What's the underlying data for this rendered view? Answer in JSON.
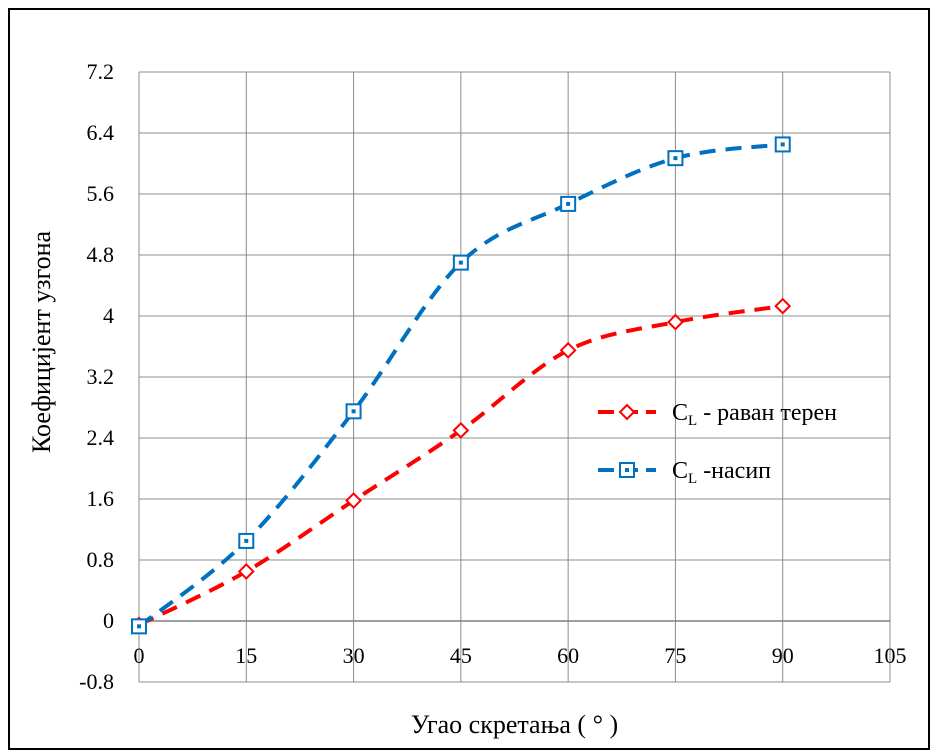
{
  "chart_data": {
    "type": "line",
    "xlabel": "Угао скретања ( ° )",
    "ylabel": "Коефицијент узгона",
    "xlim": [
      0,
      105
    ],
    "ylim": [
      -0.8,
      7.2
    ],
    "xticks": [
      0,
      15,
      30,
      45,
      60,
      75,
      90,
      105
    ],
    "yticks": [
      -0.8,
      0,
      0.8,
      1.6,
      2.4,
      3.2,
      4,
      4.8,
      5.6,
      6.4,
      7.2
    ],
    "ytick_labels": [
      "-0.8",
      "0",
      "0.8",
      "1.6",
      "2.4",
      "3.2",
      "4",
      "4.8",
      "5.6",
      "6.4",
      "7.2"
    ],
    "grid": true,
    "legend_position": "right",
    "series": [
      {
        "name_main": "C",
        "name_sub": "L",
        "name_rest": " - раван терен",
        "color": "#ff0000",
        "marker": "diamond",
        "line_style": "dashed",
        "x": [
          0,
          15,
          30,
          45,
          60,
          75,
          90
        ],
        "y": [
          -0.05,
          0.65,
          1.58,
          2.5,
          3.55,
          3.92,
          4.13
        ]
      },
      {
        "name_main": "C",
        "name_sub": "L",
        "name_rest": " -насип",
        "color": "#0070c0",
        "marker": "square",
        "line_style": "dashed",
        "x": [
          0,
          15,
          30,
          45,
          60,
          75,
          90
        ],
        "y": [
          -0.07,
          1.05,
          2.75,
          4.7,
          5.47,
          6.07,
          6.25
        ]
      }
    ]
  }
}
